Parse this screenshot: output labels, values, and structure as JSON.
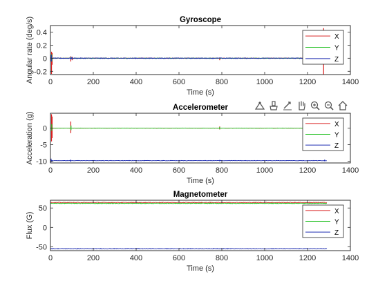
{
  "chart_data": [
    {
      "type": "line",
      "title": "Gyroscope",
      "xlabel": "Time (s)",
      "ylabel": "Angular rate (deg/s)",
      "xlim": [
        0,
        1400
      ],
      "ylim": [
        -0.25,
        0.5
      ],
      "xticks": [
        0,
        200,
        400,
        600,
        800,
        1000,
        1200,
        1400
      ],
      "yticks": [
        -0.2,
        0,
        0.2,
        0.4
      ],
      "ytick_labels": [
        "-0.2",
        "0",
        "0.2",
        "0.4"
      ],
      "legend_position": "top-right",
      "series": [
        {
          "name": "X",
          "color": "#d92020",
          "baseline": 0.0,
          "noise": 0.004,
          "end": 1290,
          "spikes": [
            [
              5,
              -0.24,
              0.1
            ],
            [
              8,
              0.08,
              -0.1
            ],
            [
              95,
              0.03,
              -0.05
            ],
            [
              102,
              0.02,
              -0.03
            ],
            [
              790,
              0.01,
              -0.03
            ],
            [
              1275,
              0.46,
              -0.25
            ]
          ]
        },
        {
          "name": "Y",
          "color": "#20c020",
          "baseline": 0.0,
          "noise": 0.003,
          "end": 1290,
          "spikes": [
            [
              6,
              -0.05,
              0.06
            ],
            [
              96,
              0.02,
              -0.02
            ]
          ]
        },
        {
          "name": "Z",
          "color": "#1c2bb0",
          "baseline": 0.0,
          "noise": 0.006,
          "end": 1290,
          "spikes": [
            [
              4,
              0.05,
              -0.05
            ],
            [
              97,
              0.02,
              -0.02
            ]
          ]
        }
      ]
    },
    {
      "type": "line",
      "title": "Accelerometer",
      "xlabel": "Time (s)",
      "ylabel": "Acceleration (g)",
      "xlim": [
        0,
        1400
      ],
      "ylim": [
        -10.5,
        4.5
      ],
      "xticks": [
        0,
        200,
        400,
        600,
        800,
        1000,
        1200,
        1400
      ],
      "yticks": [
        -10,
        -5,
        0
      ],
      "ytick_labels": [
        "-10",
        "-5",
        "0"
      ],
      "legend_position": "top-right",
      "series": [
        {
          "name": "X",
          "color": "#d92020",
          "baseline": 0.0,
          "noise": 0.03,
          "end": 1290,
          "spikes": [
            [
              5,
              4.2,
              -4.0
            ],
            [
              8,
              3.5,
              -3.0
            ],
            [
              95,
              2.0,
              -1.5
            ],
            [
              790,
              0.5,
              -0.4
            ]
          ]
        },
        {
          "name": "Y",
          "color": "#20c020",
          "baseline": 0.0,
          "noise": 0.04,
          "end": 1290,
          "spikes": [
            [
              6,
              1.2,
              -0.8
            ],
            [
              96,
              0.8,
              -0.6
            ],
            [
              790,
              0.3,
              -0.3
            ]
          ]
        },
        {
          "name": "Z",
          "color": "#1c2bb0",
          "baseline": -9.8,
          "noise": 0.05,
          "end": 1290,
          "spikes": [
            [
              3,
              -9.2,
              -10.3
            ],
            [
              95,
              -9.5,
              -10.1
            ],
            [
              790,
              -9.6,
              -10.0
            ],
            [
              1280,
              -9.5,
              -10.0
            ]
          ]
        }
      ]
    },
    {
      "type": "line",
      "title": "Magnetometer",
      "xlabel": "Time (s)",
      "ylabel": "Flux (G)",
      "xlim": [
        0,
        1400
      ],
      "ylim": [
        -60,
        70
      ],
      "xticks": [
        0,
        200,
        400,
        600,
        800,
        1000,
        1200,
        1400
      ],
      "yticks": [
        -50,
        0,
        50
      ],
      "ytick_labels": [
        "-50",
        "0",
        "50"
      ],
      "legend_position": "top-right",
      "series": [
        {
          "name": "X",
          "color": "#d92020",
          "baseline": 64.0,
          "noise": 0.8,
          "end": 1290,
          "spikes": []
        },
        {
          "name": "Y",
          "color": "#20c020",
          "baseline": 62.0,
          "noise": 0.8,
          "end": 1290,
          "spikes": []
        },
        {
          "name": "Z",
          "color": "#1c2bb0",
          "baseline": -55.0,
          "noise": 0.8,
          "end": 1290,
          "spikes": []
        }
      ]
    }
  ],
  "toolbar": {
    "icons": [
      "data-tip-icon",
      "brush-icon",
      "restore-view-icon",
      "pan-hand-icon",
      "zoom-in-icon",
      "zoom-out-icon",
      "home-icon"
    ]
  }
}
